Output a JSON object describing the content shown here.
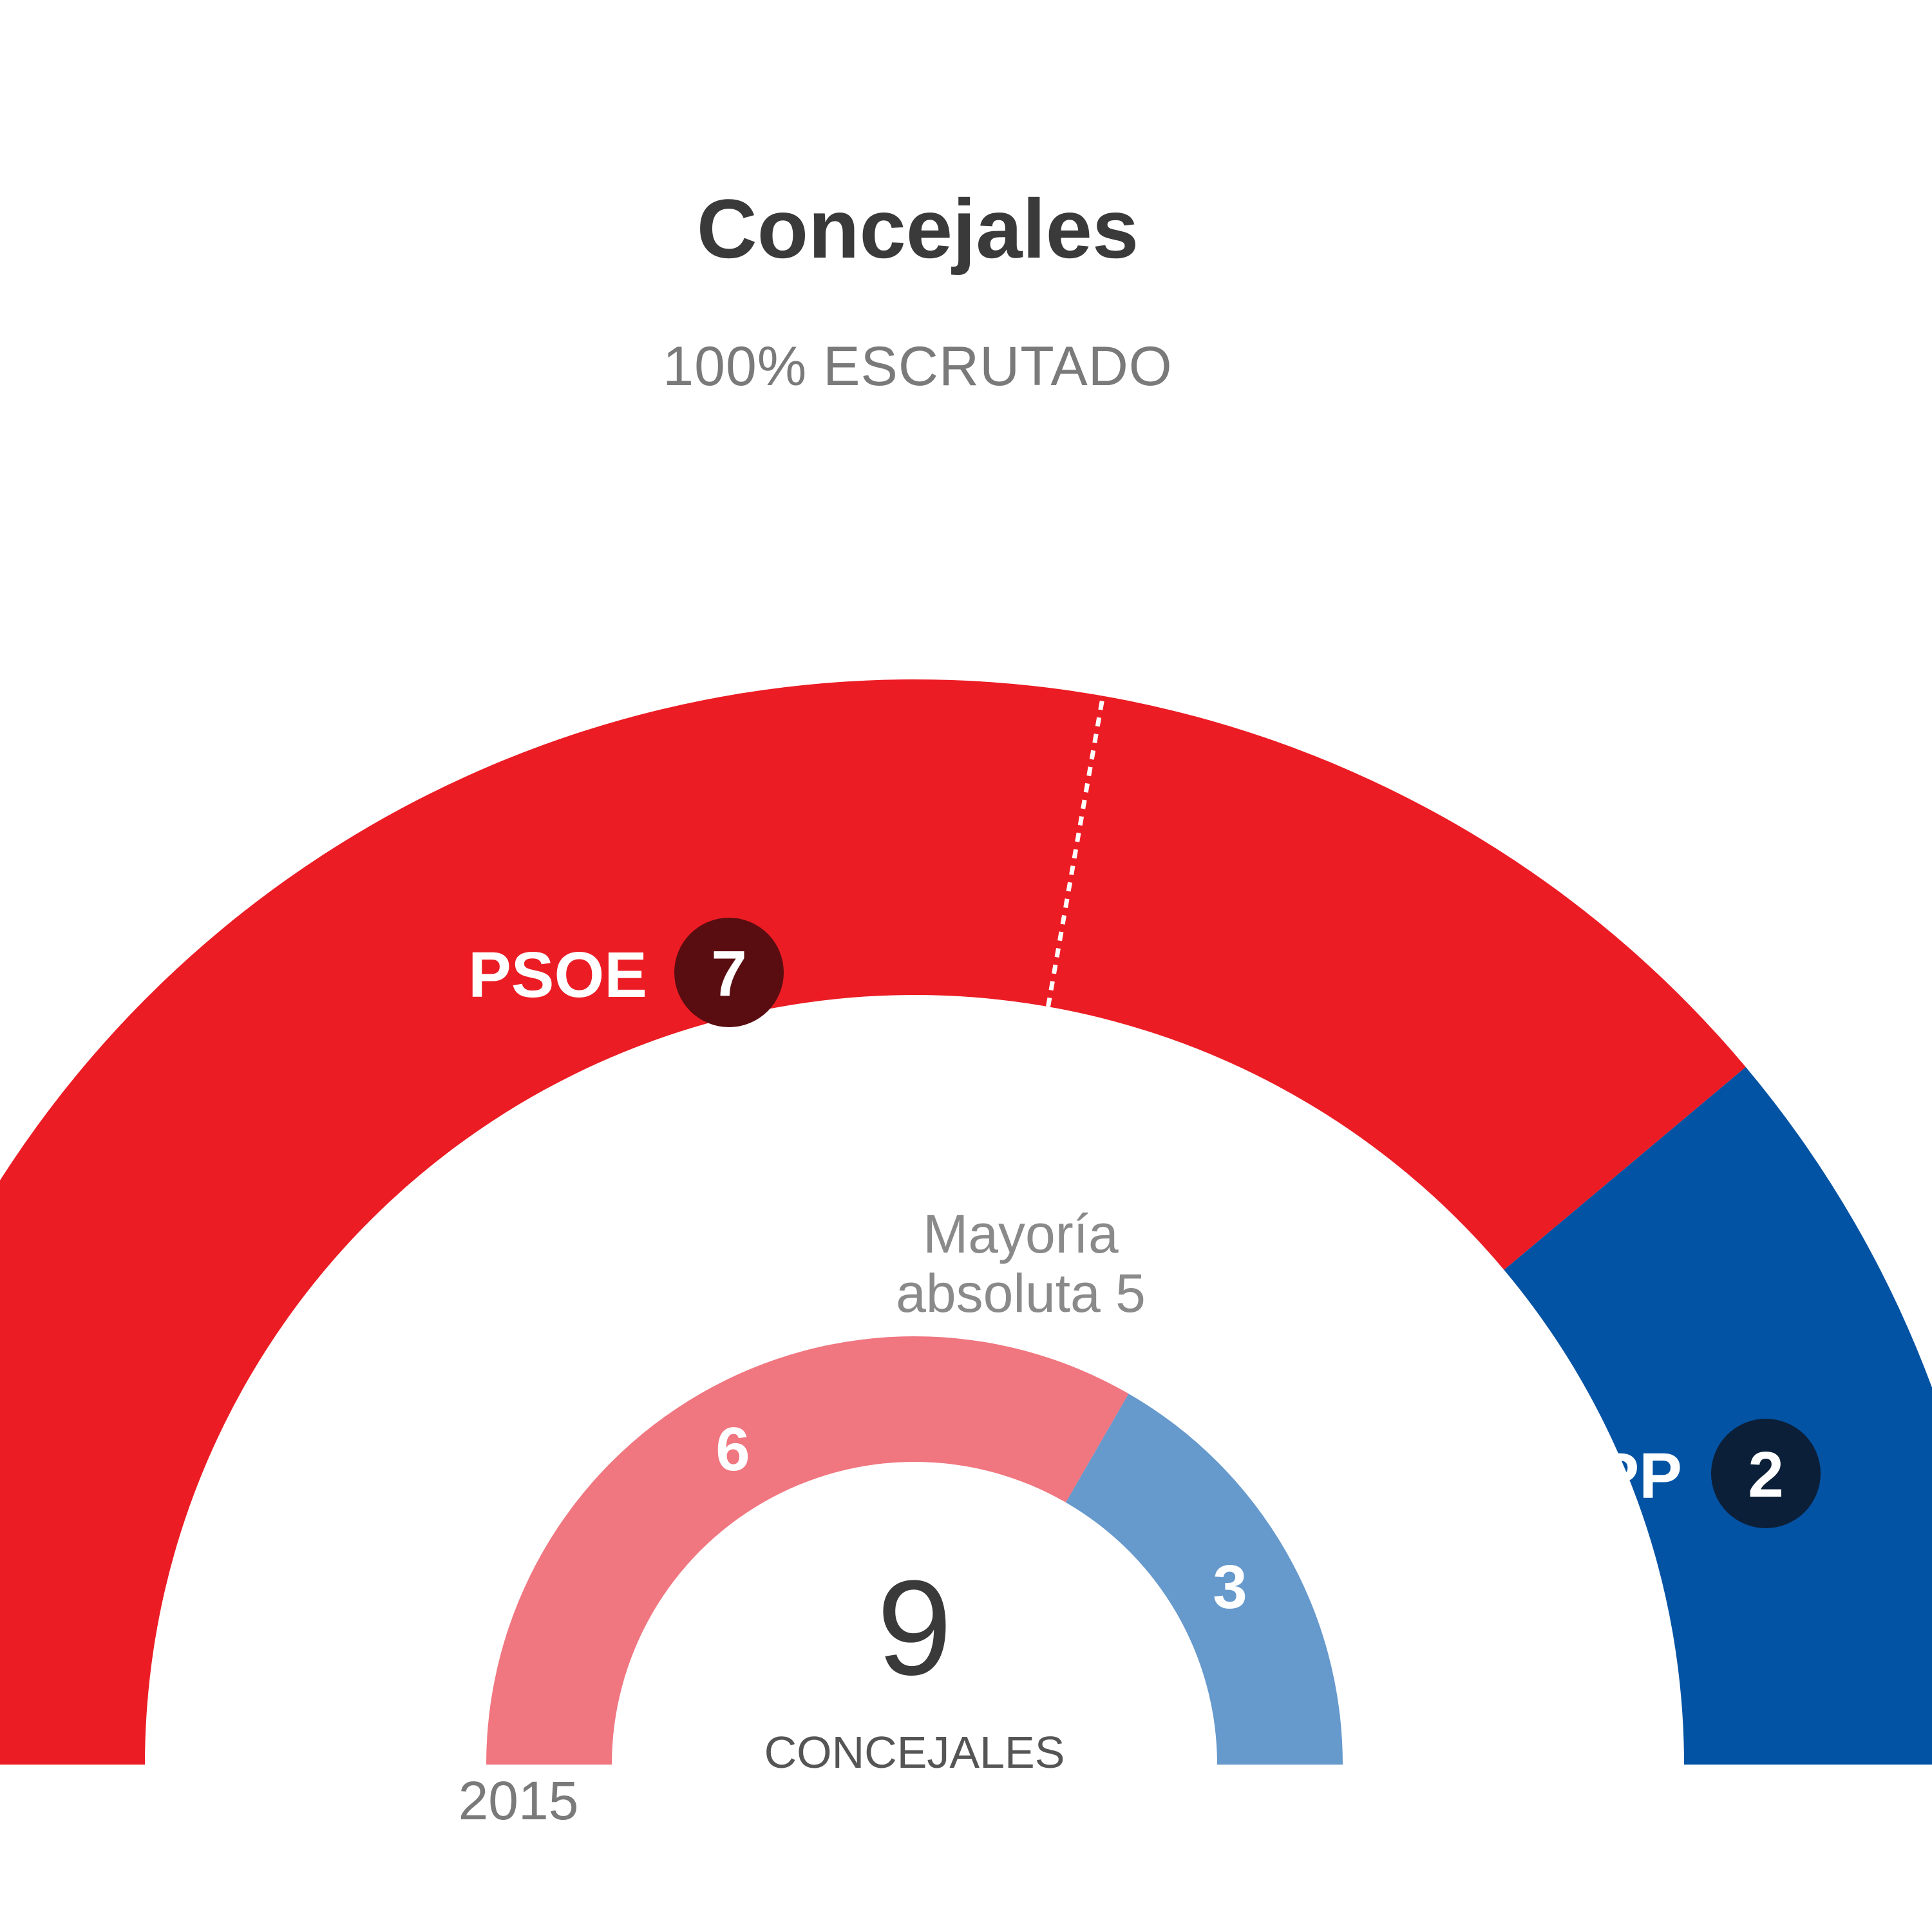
{
  "header": {
    "title": "Concejales",
    "subtitle": "100% ESCRUTADO"
  },
  "chart_data": {
    "type": "pie",
    "variant": "half-donut-parliament",
    "total_seats": 9,
    "total_label": "CONCEJALES",
    "majority": {
      "seats": 5,
      "label_line1": "Mayoría",
      "label_line2": "absoluta 5"
    },
    "current": {
      "series": [
        {
          "name": "PSOE",
          "seats": 7,
          "color": "#ec1c24",
          "badge_color": "#5a0d10"
        },
        {
          "name": "PP",
          "seats": 2,
          "color": "#0353a4",
          "badge_color": "#0c1f38"
        }
      ]
    },
    "previous": {
      "year_label": "2015",
      "series": [
        {
          "party": "PSOE",
          "seats": 6,
          "color": "#f07680"
        },
        {
          "party": "PP",
          "seats": 3,
          "color": "#6699cc"
        }
      ]
    }
  }
}
